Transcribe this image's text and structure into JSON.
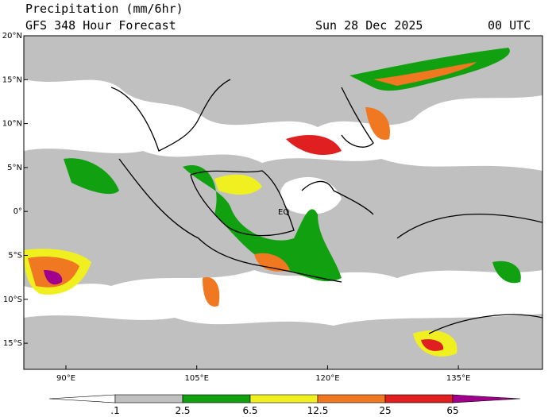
{
  "header": {
    "title": "Precipitation (mm/6hr)",
    "subtitle": "GFS 348 Hour Forecast",
    "date": "Sun 28 Dec 2025",
    "time": "00 UTC"
  },
  "map": {
    "lat_labels": [
      "20°N",
      "15°N",
      "10°N",
      "5°N",
      "0°",
      "5°S",
      "10°S",
      "15°S"
    ],
    "lon_labels": [
      "90°E",
      "105°E",
      "120°E",
      "135°E"
    ],
    "annotation": "EQ"
  },
  "colorbar": {
    "labels": [
      ".1",
      "2.5",
      "6.5",
      "12.5",
      "25",
      "65"
    ],
    "colors": [
      "#ffffff",
      "#c0c0c0",
      "#10a010",
      "#f0f020",
      "#f07820",
      "#e02020",
      "#a0008c"
    ]
  }
}
